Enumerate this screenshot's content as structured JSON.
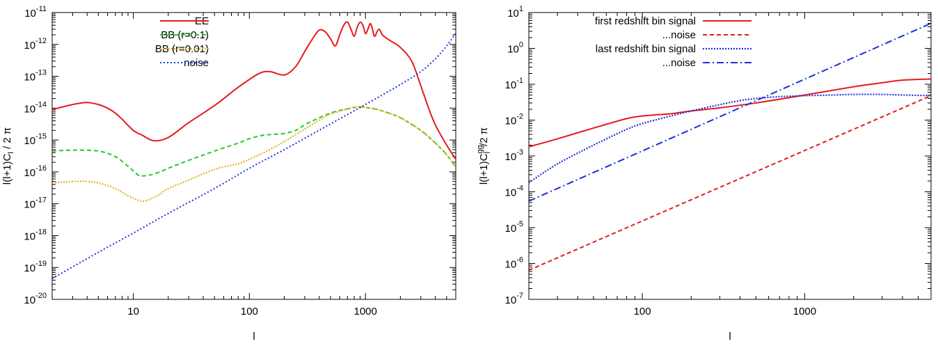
{
  "chart_data": [
    {
      "type": "line",
      "xscale": "log",
      "yscale": "log",
      "xlim": [
        2,
        6000
      ],
      "ylim": [
        1e-20,
        1e-11
      ],
      "xlabel": "l",
      "ylabel": "l(l+1)C_l / 2 π",
      "ylabel_parts": {
        "main": "l(l+1)C",
        "sub": "l",
        "tail": " / 2 π"
      },
      "xticks": [
        {
          "value": 10,
          "label": "10"
        },
        {
          "value": 100,
          "label": "100"
        },
        {
          "value": 1000,
          "label": "1000"
        }
      ],
      "yticks": [
        {
          "value": 1e-20,
          "base": "10",
          "exp": "-20"
        },
        {
          "value": 1e-19,
          "base": "10",
          "exp": "-19"
        },
        {
          "value": 1e-18,
          "base": "10",
          "exp": "-18"
        },
        {
          "value": 1e-17,
          "base": "10",
          "exp": "-17"
        },
        {
          "value": 1e-16,
          "base": "10",
          "exp": "-16"
        },
        {
          "value": 1e-15,
          "base": "10",
          "exp": "-15"
        },
        {
          "value": 1e-14,
          "base": "10",
          "exp": "-14"
        },
        {
          "value": 1e-13,
          "base": "10",
          "exp": "-13"
        },
        {
          "value": 1e-12,
          "base": "10",
          "exp": "-12"
        },
        {
          "value": 1e-11,
          "base": "10",
          "exp": "-11"
        }
      ],
      "legend_position": "top-left",
      "grid": false,
      "series": [
        {
          "name": "EE",
          "color": "#e41a1c",
          "dash": "solid",
          "x": [
            2,
            3,
            4,
            5,
            6,
            7,
            8,
            10,
            12,
            15,
            20,
            30,
            50,
            80,
            120,
            150,
            200,
            250,
            300,
            350,
            400,
            450,
            500,
            550,
            600,
            650,
            700,
            750,
            800,
            850,
            900,
            950,
            1000,
            1050,
            1100,
            1150,
            1200,
            1300,
            1400,
            1500,
            1700,
            2000,
            2500,
            3000,
            3500,
            4000,
            5000,
            6000
          ],
          "y": [
            9e-15,
            1.3e-14,
            1.5e-14,
            1.3e-14,
            1e-14,
            7e-15,
            4.5e-15,
            2e-15,
            1.4e-15,
            9.5e-16,
            1.2e-15,
            3.5e-15,
            1.2e-14,
            4.5e-14,
            1.2e-13,
            1.4e-13,
            1.1e-13,
            2e-13,
            6e-13,
            1.5e-12,
            2.8e-12,
            2.5e-12,
            1.5e-12,
            9e-13,
            2e-12,
            4e-12,
            5e-12,
            3e-12,
            1.8e-12,
            3.5e-12,
            5e-12,
            4e-12,
            2.2e-12,
            3e-12,
            4.5e-12,
            3e-12,
            1.8e-12,
            3e-12,
            2e-12,
            1.6e-12,
            1.2e-12,
            8e-13,
            3e-13,
            5e-14,
            1e-14,
            3e-15,
            7e-16,
            2.5e-16
          ]
        },
        {
          "name": "BB (r=0.1)",
          "color": "#22cc22",
          "dash": "dashed",
          "x": [
            2,
            3,
            5,
            7,
            9,
            11,
            12,
            14,
            17,
            20,
            30,
            50,
            80,
            100,
            130,
            160,
            200,
            250,
            300,
            400,
            500,
            600,
            700,
            800,
            900,
            1000,
            1200,
            1500,
            2000,
            3000,
            4000,
            5000,
            6000
          ],
          "y": [
            4.5e-16,
            4.8e-16,
            4.5e-16,
            3e-16,
            1.5e-16,
            8e-17,
            7.5e-17,
            8e-17,
            1e-16,
            1.3e-16,
            2.3e-16,
            4.5e-16,
            8e-16,
            1.1e-15,
            1.4e-15,
            1.5e-15,
            1.6e-15,
            2e-15,
            3e-15,
            5e-15,
            7e-15,
            8.5e-15,
            9.5e-15,
            1.05e-14,
            1.1e-14,
            1.05e-14,
            9.5e-15,
            7.5e-15,
            5e-15,
            2e-15,
            8e-16,
            3.5e-16,
            1.4e-16
          ]
        },
        {
          "name": "BB (r=0.01)",
          "color": "#e0b020",
          "dash": "dotted",
          "x": [
            2,
            3,
            4,
            5,
            7,
            9,
            11,
            12,
            14,
            17,
            20,
            30,
            50,
            80,
            100,
            150,
            200,
            300,
            400,
            500,
            600,
            700,
            800,
            900,
            1000,
            1200,
            1500,
            2000,
            3000,
            4000,
            5000,
            6000
          ],
          "y": [
            4.5e-17,
            5e-17,
            5e-17,
            4.5e-17,
            3e-17,
            1.8e-17,
            1.3e-17,
            1.2e-17,
            1.4e-17,
            2e-17,
            3e-17,
            5.5e-17,
            1.2e-16,
            1.8e-16,
            2.5e-16,
            5e-16,
            9e-16,
            2.2e-15,
            4.2e-15,
            6.5e-15,
            8e-15,
            9.5e-15,
            1.05e-14,
            1.1e-14,
            1.05e-14,
            9.5e-15,
            7.5e-15,
            5e-15,
            2e-15,
            8e-16,
            3.5e-16,
            1.4e-16
          ]
        },
        {
          "name": "noise",
          "color": "#1a2fd8",
          "dash": "fine-dotted",
          "x": [
            2,
            5,
            10,
            20,
            50,
            100,
            200,
            500,
            1000,
            1500,
            2000,
            3000,
            4000,
            5000,
            6000
          ],
          "y": [
            4.5e-20,
            3e-19,
            1.2e-18,
            5e-18,
            3e-17,
            1.3e-16,
            5e-16,
            3.2e-15,
            1.3e-14,
            3e-14,
            5.5e-14,
            1.4e-13,
            3.5e-13,
            9e-13,
            2.2e-12
          ]
        }
      ]
    },
    {
      "type": "line",
      "xscale": "log",
      "yscale": "log",
      "xlim": [
        20,
        6000
      ],
      "ylim": [
        1e-07,
        10
      ],
      "xlabel": "l",
      "ylabel": "l(l+1)C_l^gg/2 π",
      "ylabel_parts": {
        "main": "l(l+1)C",
        "sub": "l",
        "sup": "gg",
        "tail": "/2 π"
      },
      "xticks": [
        {
          "value": 100,
          "label": "100"
        },
        {
          "value": 1000,
          "label": "1000"
        }
      ],
      "yticks": [
        {
          "value": 1e-07,
          "base": "10",
          "exp": "-7"
        },
        {
          "value": 1e-06,
          "base": "10",
          "exp": "-6"
        },
        {
          "value": 1e-05,
          "base": "10",
          "exp": "-5"
        },
        {
          "value": 0.0001,
          "base": "10",
          "exp": "-4"
        },
        {
          "value": 0.001,
          "base": "10",
          "exp": "-3"
        },
        {
          "value": 0.01,
          "base": "10",
          "exp": "-2"
        },
        {
          "value": 0.1,
          "base": "10",
          "exp": "-1"
        },
        {
          "value": 1,
          "base": "10",
          "exp": "0"
        },
        {
          "value": 10,
          "base": "10",
          "exp": "1"
        }
      ],
      "legend_position": "top-right",
      "grid": false,
      "series": [
        {
          "name": "first redshift bin signal",
          "color": "#e41a1c",
          "dash": "solid",
          "x": [
            20,
            30,
            50,
            80,
            100,
            120,
            150,
            200,
            300,
            500,
            1000,
            2000,
            3000,
            4000,
            6000
          ],
          "y": [
            0.0018,
            0.003,
            0.006,
            0.011,
            0.013,
            0.014,
            0.015,
            0.018,
            0.022,
            0.03,
            0.05,
            0.085,
            0.11,
            0.13,
            0.14
          ]
        },
        {
          "name": "...noise",
          "color": "#e41a1c",
          "dash": "dashed",
          "x": [
            20,
            6000
          ],
          "y": [
            6.5e-07,
            0.048
          ]
        },
        {
          "name": "last redshift bin signal",
          "color": "#1a2fd8",
          "dash": "dotted",
          "x": [
            20,
            30,
            50,
            80,
            100,
            150,
            200,
            300,
            400,
            500,
            700,
            1000,
            1500,
            2000,
            3000,
            4000,
            6000
          ],
          "y": [
            0.00018,
            0.0006,
            0.002,
            0.0055,
            0.008,
            0.013,
            0.018,
            0.027,
            0.035,
            0.04,
            0.045,
            0.048,
            0.05,
            0.052,
            0.052,
            0.05,
            0.048
          ]
        },
        {
          "name": "...noise",
          "color": "#1a2fd8",
          "dash": "dash-dot",
          "x": [
            20,
            6000
          ],
          "y": [
            5.5e-05,
            5
          ]
        }
      ]
    }
  ]
}
